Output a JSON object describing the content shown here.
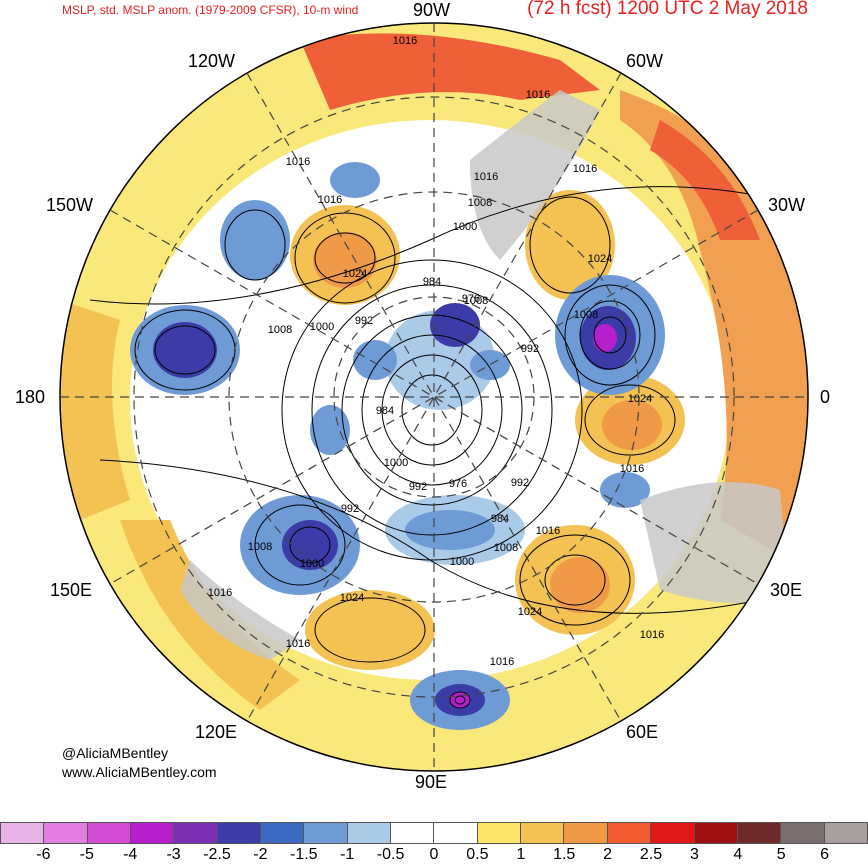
{
  "title_left": "MSLP, std. MSLP anom. (1979-2009 CFSR), 10-m wind",
  "title_right": "(72 h fcst) 1200 UTC 2 May 2018",
  "longitudes": {
    "top": "90W",
    "bottom": "90E",
    "left": "180",
    "right": "0",
    "upper_left_1": "120W",
    "upper_left_2": "150W",
    "upper_right_1": "60W",
    "upper_right_2": "30W",
    "lower_left_1": "150E",
    "lower_left_2": "120E",
    "lower_right_1": "30E",
    "lower_right_2": "60E"
  },
  "credit": {
    "handle": "@AliciaMBentley",
    "url": "www.AliciaMBentley.com"
  },
  "isobar_labels": [
    "1016",
    "1016",
    "1016",
    "1016",
    "1016",
    "1008",
    "1000",
    "1024",
    "984",
    "976",
    "992",
    "1008",
    "1000",
    "1016",
    "1008",
    "992",
    "1024",
    "1008",
    "1024",
    "984",
    "1000",
    "992",
    "976",
    "992",
    "1016",
    "992",
    "1008",
    "1000",
    "984",
    "1016",
    "1008",
    "1000",
    "1016",
    "1024",
    "1024",
    "1016",
    "1016",
    "1016"
  ],
  "colorbar": {
    "colors": [
      "#e8b4e8",
      "#e27de2",
      "#d24bd2",
      "#b61fcc",
      "#7b2fb4",
      "#3c3ca8",
      "#3a6bbf",
      "#6e9bd6",
      "#a9cbe8",
      "#ffffff",
      "#ffffff",
      "#fbe56a",
      "#f3c252",
      "#f09a48",
      "#f05c30",
      "#e01818",
      "#a01010",
      "#6e2a2a",
      "#7a6e6e",
      "#a89e9e"
    ],
    "ticks": [
      "-6",
      "-5",
      "-4",
      "-3",
      "-2.5",
      "-2",
      "-1.5",
      "-1",
      "-0.5",
      "0",
      "0.5",
      "1",
      "1.5",
      "2",
      "2.5",
      "3",
      "4",
      "5",
      "6"
    ]
  },
  "colors": {
    "title": "#e8201e",
    "land": "#c8c8c8",
    "high_anomaly": "#f0a050",
    "low_anomaly": "#5b80c8"
  }
}
